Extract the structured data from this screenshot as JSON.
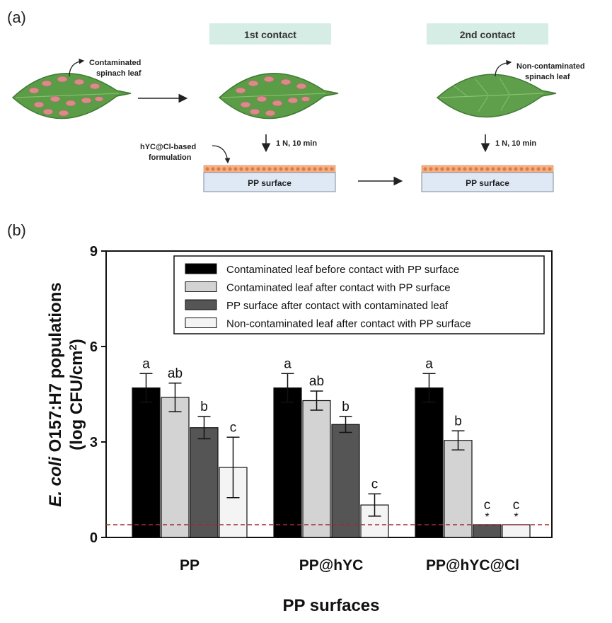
{
  "panel_a": {
    "label": "(a)",
    "contact1_label": "1st contact",
    "contact2_label": "2nd contact",
    "contaminated_leaf_label": [
      "Contaminated",
      "spinach leaf"
    ],
    "noncontaminated_leaf_label": [
      "Non-contaminated",
      "spinach leaf"
    ],
    "force_label": "1 N, 10 min",
    "formulation_label": [
      "hYC@Cl-based",
      "formulation"
    ],
    "surface_label": "PP surface"
  },
  "panel_b_label": "(b)",
  "chart_data": {
    "type": "bar",
    "categories": [
      "PP",
      "PP@hYC",
      "PP@hYC@Cl"
    ],
    "series": [
      {
        "name": "Contaminated leaf before contact with PP surface",
        "color": "#000000",
        "values": [
          4.7,
          4.7,
          4.7
        ],
        "errors": [
          0.45,
          0.45,
          0.45
        ],
        "letters": [
          "a",
          "a",
          "a"
        ],
        "stars": [
          "",
          "",
          ""
        ]
      },
      {
        "name": "Contaminated leaf after contact with PP surface",
        "color": "#d3d3d3",
        "values": [
          4.4,
          4.3,
          3.05
        ],
        "errors": [
          0.45,
          0.3,
          0.3
        ],
        "letters": [
          "ab",
          "ab",
          "b"
        ],
        "stars": [
          "",
          "",
          ""
        ]
      },
      {
        "name": "PP surface after contact with contaminated leaf",
        "color": "#555555",
        "values": [
          3.45,
          3.55,
          0.4
        ],
        "errors": [
          0.35,
          0.25,
          0.0
        ],
        "letters": [
          "b",
          "b",
          "c"
        ],
        "stars": [
          "",
          "",
          "*"
        ]
      },
      {
        "name": "Non-contaminated leaf after contact with PP surface",
        "color": "#f4f4f4",
        "values": [
          2.2,
          1.02,
          0.4
        ],
        "errors": [
          0.95,
          0.35,
          0.0
        ],
        "letters": [
          "c",
          "c",
          "c"
        ],
        "stars": [
          "",
          "",
          "*"
        ]
      }
    ],
    "ylabel_italic": "E. coli",
    "ylabel_rest": " O157:H7 populations",
    "ylabel_line2_prefix": "(log CFU/cm",
    "ylabel_line2_sup": "2",
    "ylabel_line2_suffix": ")",
    "xlabel": "PP surfaces",
    "ylim": [
      0,
      9
    ],
    "yticks": [
      0,
      3,
      6,
      9
    ],
    "detection_limit": 0.4,
    "detection_limit_color": "#a52a2a",
    "legend_position": "top-right",
    "grid": false
  }
}
